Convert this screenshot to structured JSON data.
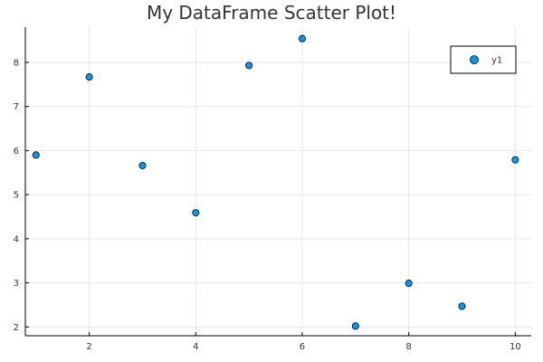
{
  "chart_data": {
    "type": "scatter",
    "title": "My DataFrame Scatter Plot!",
    "xlabel": "",
    "ylabel": "",
    "xlim": [
      0.8,
      10.3
    ],
    "ylim": [
      1.8,
      8.8
    ],
    "x_ticks": [
      2,
      4,
      6,
      8,
      10
    ],
    "y_ticks": [
      2,
      3,
      4,
      5,
      6,
      7,
      8
    ],
    "grid": true,
    "legend_position": "top-right",
    "series": [
      {
        "name": "y1",
        "color": "#009af9",
        "x": [
          1,
          2,
          3,
          4,
          5,
          6,
          7,
          8,
          9,
          10
        ],
        "y": [
          5.9,
          7.67,
          5.66,
          4.59,
          7.93,
          8.54,
          2.02,
          2.99,
          2.47,
          5.79
        ]
      }
    ]
  }
}
